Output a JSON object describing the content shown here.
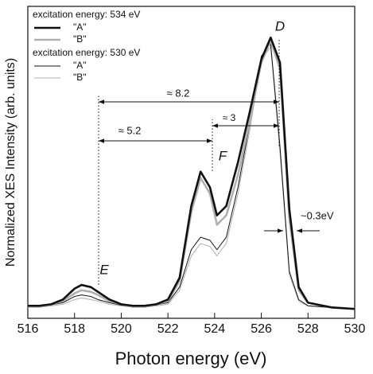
{
  "chart_data": {
    "type": "line",
    "xlabel": "Photon energy (eV)",
    "ylabel": "Normalized XES Intensity (arb. units)",
    "x": [
      516,
      516.5,
      517,
      517.5,
      518,
      518.3,
      518.7,
      519,
      519.5,
      520,
      520.5,
      521,
      521.5,
      522,
      522.5,
      523,
      523.4,
      523.8,
      524.1,
      524.5,
      525,
      525.5,
      526,
      526.4,
      526.8,
      527.2,
      527.6,
      528,
      529,
      530
    ],
    "legend_groups": [
      "excitation energy: 534 eV",
      "excitation energy: 530 eV"
    ],
    "series": [
      {
        "name": "\"A\"",
        "group": 0,
        "color": "#111111",
        "line_width": 2.6,
        "values": [
          0.04,
          0.04,
          0.045,
          0.06,
          0.095,
          0.107,
          0.1,
          0.085,
          0.06,
          0.045,
          0.04,
          0.04,
          0.045,
          0.06,
          0.13,
          0.36,
          0.47,
          0.42,
          0.33,
          0.36,
          0.5,
          0.66,
          0.83,
          0.9,
          0.82,
          0.35,
          0.1,
          0.05,
          0.035,
          0.03
        ]
      },
      {
        "name": "\"B\"",
        "group": 0,
        "color": "#b0b0b0",
        "line_width": 2.6,
        "values": [
          0.04,
          0.04,
          0.045,
          0.055,
          0.08,
          0.09,
          0.085,
          0.075,
          0.055,
          0.045,
          0.04,
          0.04,
          0.045,
          0.055,
          0.12,
          0.34,
          0.45,
          0.4,
          0.3,
          0.33,
          0.46,
          0.63,
          0.82,
          0.89,
          0.8,
          0.32,
          0.09,
          0.05,
          0.035,
          0.03
        ]
      },
      {
        "name": "\"A\"",
        "group": 1,
        "color": "#111111",
        "line_width": 1,
        "values": [
          0.04,
          0.04,
          0.043,
          0.05,
          0.07,
          0.075,
          0.07,
          0.06,
          0.05,
          0.042,
          0.04,
          0.04,
          0.043,
          0.05,
          0.1,
          0.22,
          0.26,
          0.25,
          0.22,
          0.26,
          0.42,
          0.62,
          0.84,
          0.88,
          0.55,
          0.15,
          0.06,
          0.04,
          0.035,
          0.03
        ]
      },
      {
        "name": "\"B\"",
        "group": 1,
        "color": "#b0b0b0",
        "line_width": 1,
        "values": [
          0.035,
          0.035,
          0.04,
          0.045,
          0.06,
          0.065,
          0.06,
          0.055,
          0.045,
          0.04,
          0.035,
          0.035,
          0.04,
          0.045,
          0.09,
          0.2,
          0.24,
          0.23,
          0.2,
          0.24,
          0.4,
          0.6,
          0.83,
          0.87,
          0.53,
          0.14,
          0.055,
          0.04,
          0.033,
          0.03
        ]
      }
    ],
    "xlim": [
      516,
      530
    ],
    "xticks": [
      516,
      518,
      520,
      522,
      524,
      526,
      528,
      530
    ],
    "ylim": [
      0,
      1
    ],
    "peak_labels": [
      "E",
      "F",
      "D"
    ],
    "annotations": [
      "≈ 8.2",
      "≈ 3",
      "≈ 5.2",
      "~0.3eV"
    ]
  }
}
